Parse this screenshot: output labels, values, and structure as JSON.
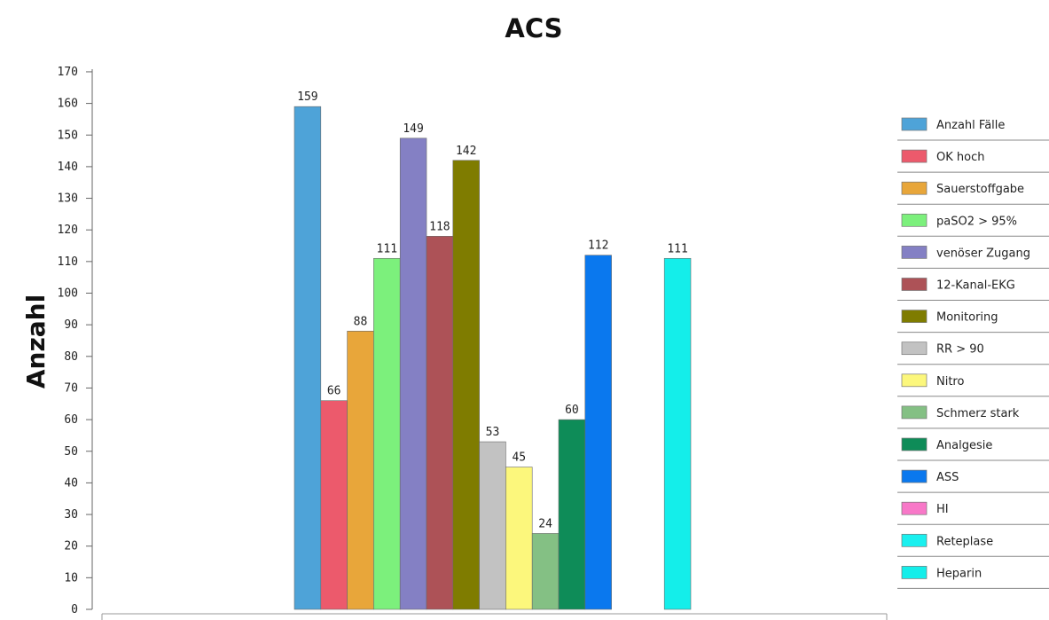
{
  "chart_data": {
    "type": "bar",
    "title": "ACS",
    "xlabel": "",
    "ylabel": "Anzahl",
    "ylim": [
      0,
      170
    ],
    "ytick_step": 10,
    "legend_position": "right",
    "grid": false,
    "series": [
      {
        "name": "Anzahl Fälle",
        "value": 159,
        "color": "#4ea3d8"
      },
      {
        "name": "OK hoch",
        "value": 66,
        "color": "#ec5a6c"
      },
      {
        "name": "Sauerstoffgabe",
        "value": 88,
        "color": "#e8a63a"
      },
      {
        "name": "paSO2 > 95%",
        "value": 111,
        "color": "#7cf07c"
      },
      {
        "name": "venöser Zugang",
        "value": 149,
        "color": "#8480c4"
      },
      {
        "name": "12-Kanal-EKG",
        "value": 118,
        "color": "#ad5257"
      },
      {
        "name": "Monitoring",
        "value": 142,
        "color": "#7f7c00"
      },
      {
        "name": "RR > 90",
        "value": 53,
        "color": "#c2c2c2"
      },
      {
        "name": "Nitro",
        "value": 45,
        "color": "#fcf77c"
      },
      {
        "name": "Schmerz stark",
        "value": 24,
        "color": "#84c084"
      },
      {
        "name": "Analgesie",
        "value": 60,
        "color": "#0e8c58"
      },
      {
        "name": "ASS",
        "value": 112,
        "color": "#0a78ee"
      },
      {
        "name": "HI",
        "value": 0,
        "color": "#f878c8"
      },
      {
        "name": "Reteplase",
        "value": 0,
        "color": "#1af0ef"
      },
      {
        "name": "Heparin",
        "value": 111,
        "color": "#14eeea"
      }
    ]
  }
}
